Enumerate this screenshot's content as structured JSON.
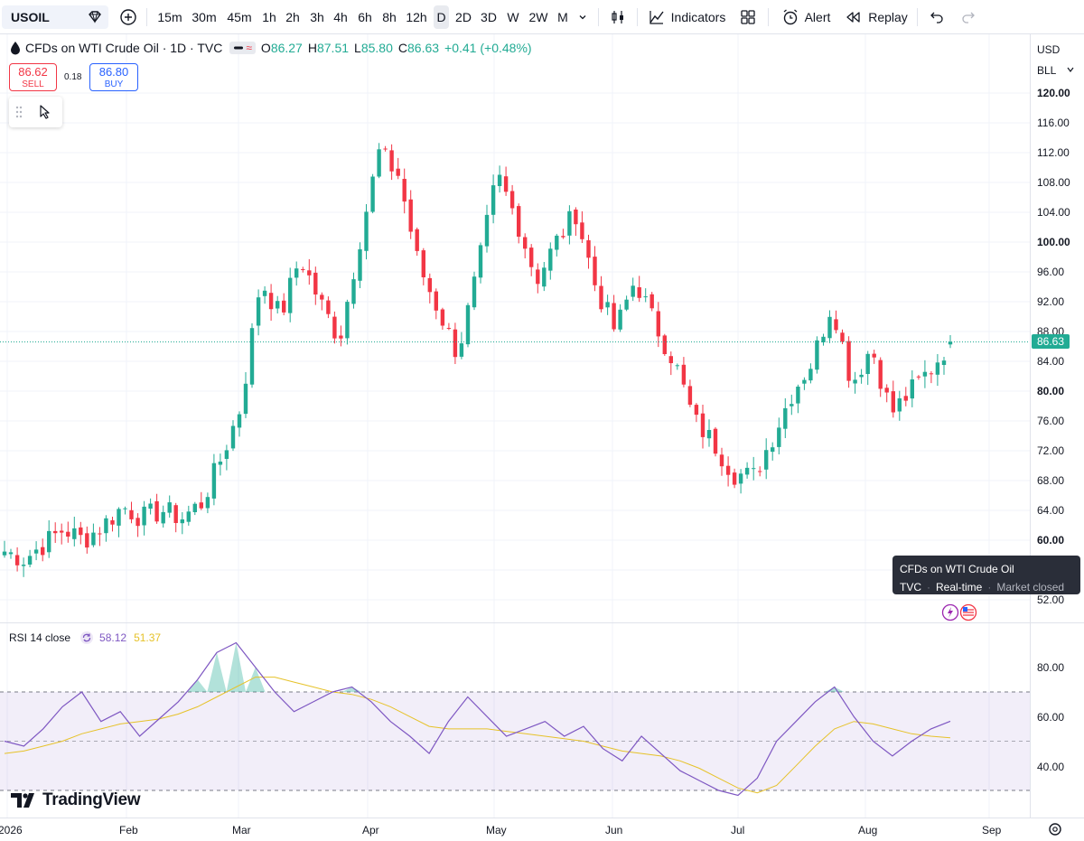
{
  "toolbar": {
    "symbol": "USOIL",
    "intervals": [
      "15m",
      "30m",
      "45m",
      "1h",
      "2h",
      "3h",
      "4h",
      "6h",
      "8h",
      "12h",
      "D",
      "2D",
      "3D",
      "W",
      "2W",
      "M"
    ],
    "active_interval": "D",
    "indicators_label": "Indicators",
    "alert_label": "Alert",
    "replay_label": "Replay"
  },
  "legend": {
    "title": "CFDs on WTI Crude Oil · 1D · TVC",
    "open_key": "O",
    "open": "86.27",
    "high_key": "H",
    "high": "87.51",
    "low_key": "L",
    "low": "85.80",
    "close_key": "C",
    "close": "86.63",
    "change": "+0.41 (+0.48%)"
  },
  "trade": {
    "sell_price": "86.62",
    "sell_label": "SELL",
    "buy_price": "86.80",
    "buy_label": "BUY",
    "spread": "0.18"
  },
  "price_axis": {
    "currency": "USD",
    "unit": "BLL",
    "labels": [
      {
        "text": "120.00",
        "bold": true
      },
      {
        "text": "116.00",
        "bold": false
      },
      {
        "text": "112.00",
        "bold": false
      },
      {
        "text": "108.00",
        "bold": false
      },
      {
        "text": "104.00",
        "bold": false
      },
      {
        "text": "100.00",
        "bold": true
      },
      {
        "text": "96.00",
        "bold": false
      },
      {
        "text": "92.00",
        "bold": false
      },
      {
        "text": "88.00",
        "bold": false
      },
      {
        "text": "84.00",
        "bold": false
      },
      {
        "text": "80.00",
        "bold": true
      },
      {
        "text": "76.00",
        "bold": false
      },
      {
        "text": "72.00",
        "bold": false
      },
      {
        "text": "68.00",
        "bold": false
      },
      {
        "text": "64.00",
        "bold": false
      },
      {
        "text": "60.00",
        "bold": true
      },
      {
        "text": "52.00",
        "bold": false
      }
    ],
    "last_price": "86.63"
  },
  "tooltip": {
    "line1": "CFDs on WTI Crude Oil",
    "exchange": "TVC",
    "status": "Real-time",
    "market": "Market closed"
  },
  "rsi": {
    "label": "RSI 14 close",
    "value": "58.12",
    "ma_value": "51.37",
    "axis_labels": [
      "80.00",
      "60.00",
      "40.00"
    ]
  },
  "branding": {
    "logo_text": "TradingView"
  },
  "time_axis": {
    "labels": [
      "2026",
      "Feb",
      "Mar",
      "Apr",
      "May",
      "Jun",
      "Jul",
      "Aug",
      "Sep"
    ]
  },
  "colors": {
    "up": "#22ab94",
    "down": "#f23645",
    "rsi_line": "#7e57c2",
    "rsi_ma": "#e6c229",
    "rsi_band": "#7e57c2"
  },
  "chart_data": {
    "type": "candlestick",
    "price_levels": [
      86.63,
      60,
      64,
      68,
      72,
      76,
      80,
      84,
      88,
      92,
      96,
      100,
      104,
      108,
      112,
      116,
      120
    ],
    "close_path": [
      {
        "m": "Jan",
        "p": 58.5
      },
      {
        "m": "Jan",
        "p": 57.5
      },
      {
        "m": "Jan",
        "p": 59.5
      },
      {
        "m": "Jan",
        "p": 61.5
      },
      {
        "m": "Jan",
        "p": 60.0
      },
      {
        "m": "Feb",
        "p": 62.0
      },
      {
        "m": "Feb",
        "p": 64.5
      },
      {
        "m": "Feb",
        "p": 63.0
      },
      {
        "m": "Feb",
        "p": 64.0
      },
      {
        "m": "Feb",
        "p": 63.0
      },
      {
        "m": "Feb",
        "p": 65.0
      },
      {
        "m": "Mar",
        "p": 71.0
      },
      {
        "m": "Mar",
        "p": 78.0
      },
      {
        "m": "Mar",
        "p": 95.0
      },
      {
        "m": "Mar",
        "p": 90.0
      },
      {
        "m": "Mar",
        "p": 98.0
      },
      {
        "m": "Mar",
        "p": 92.0
      },
      {
        "m": "Mar",
        "p": 87.0
      },
      {
        "m": "Apr",
        "p": 100.0
      },
      {
        "m": "Apr",
        "p": 112.0
      },
      {
        "m": "Apr",
        "p": 109.0
      },
      {
        "m": "Apr",
        "p": 97.0
      },
      {
        "m": "Apr",
        "p": 91.0
      },
      {
        "m": "Apr",
        "p": 85.0
      },
      {
        "m": "May",
        "p": 96.0
      },
      {
        "m": "May",
        "p": 109.0
      },
      {
        "m": "May",
        "p": 103.0
      },
      {
        "m": "May",
        "p": 95.0
      },
      {
        "m": "May",
        "p": 100.0
      },
      {
        "m": "May",
        "p": 104.0
      },
      {
        "m": "Jun",
        "p": 94.0
      },
      {
        "m": "Jun",
        "p": 88.0
      },
      {
        "m": "Jun",
        "p": 95.0
      },
      {
        "m": "Jun",
        "p": 89.0
      },
      {
        "m": "Jun",
        "p": 84.0
      },
      {
        "m": "Jun",
        "p": 76.0
      },
      {
        "m": "Jun",
        "p": 73.0
      },
      {
        "m": "Jul",
        "p": 69.0
      },
      {
        "m": "Jul",
        "p": 68.5
      },
      {
        "m": "Jul",
        "p": 74.0
      },
      {
        "m": "Jul",
        "p": 80.0
      },
      {
        "m": "Jul",
        "p": 84.0
      },
      {
        "m": "Jul",
        "p": 92.0
      },
      {
        "m": "Jul",
        "p": 81.0
      },
      {
        "m": "Aug",
        "p": 86.0
      },
      {
        "m": "Aug",
        "p": 77.0
      },
      {
        "m": "Aug",
        "p": 80.0
      },
      {
        "m": "Aug",
        "p": 83.0
      },
      {
        "m": "Aug",
        "p": 86.63
      }
    ],
    "rsi_path": [
      50,
      48,
      55,
      64,
      70,
      58,
      62,
      52,
      59,
      66,
      75,
      86,
      90,
      80,
      70,
      62,
      66,
      70,
      72,
      66,
      58,
      52,
      45,
      58,
      68,
      60,
      52,
      55,
      58,
      52,
      56,
      47,
      42,
      52,
      45,
      38,
      34,
      30,
      28,
      35,
      50,
      58,
      66,
      72,
      60,
      50,
      44,
      50,
      55,
      58.12
    ],
    "rsi_ma_path": [
      45,
      46,
      48,
      50,
      53,
      55,
      57,
      58,
      59,
      61,
      64,
      68,
      72,
      76,
      76,
      74,
      72,
      70,
      69,
      67,
      64,
      60,
      56,
      55,
      55,
      55,
      54,
      53,
      52,
      51,
      50,
      48,
      46,
      45,
      44,
      42,
      39,
      35,
      31,
      29,
      32,
      40,
      48,
      55,
      58,
      57,
      55,
      53,
      52,
      51.37
    ]
  }
}
